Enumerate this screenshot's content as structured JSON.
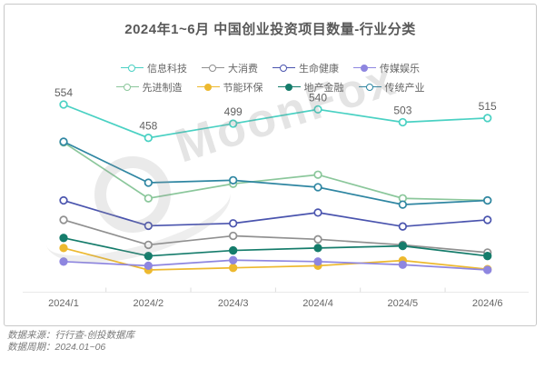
{
  "title": "2024年1~6月 中国创业投资项目数量-行业分类",
  "watermark": "MoonFox",
  "footer": {
    "source": "数据来源：行行查-创投数据库",
    "period": "数据周期：2024.01~06"
  },
  "chart_data": {
    "type": "line",
    "title": "2024年1~6月 中国创业投资项目数量-行业分类",
    "categories": [
      "2024/1",
      "2024/2",
      "2024/3",
      "2024/4",
      "2024/5",
      "2024/6"
    ],
    "series": [
      {
        "name": "信息科技",
        "color": "#4ad1c3",
        "marker": "open",
        "labeled": true,
        "values": [
          554,
          458,
          499,
          540,
          503,
          515
        ]
      },
      {
        "name": "大消费",
        "color": "#909090",
        "marker": "open",
        "labeled": false,
        "values": [
          222,
          150,
          176,
          166,
          150,
          128
        ]
      },
      {
        "name": "生命健康",
        "color": "#4a54ae",
        "marker": "open",
        "labeled": false,
        "values": [
          278,
          205,
          212,
          243,
          203,
          222
        ]
      },
      {
        "name": "传媒娱乐",
        "color": "#8e86e0",
        "marker": "filled",
        "labeled": false,
        "values": [
          102,
          90,
          106,
          102,
          93,
          78
        ]
      },
      {
        "name": "先进制造",
        "color": "#8bc79b",
        "marker": "open",
        "labeled": false,
        "values": [
          445,
          284,
          326,
          352,
          284,
          278
        ]
      },
      {
        "name": "节能环保",
        "color": "#edb92f",
        "marker": "filled",
        "labeled": false,
        "values": [
          141,
          78,
          84,
          90,
          105,
          80
        ]
      },
      {
        "name": "地产金融",
        "color": "#157c6b",
        "marker": "filled",
        "labeled": false,
        "values": [
          170,
          118,
          134,
          141,
          147,
          118
        ]
      },
      {
        "name": "传统产业",
        "color": "#2f86a2",
        "marker": "open",
        "labeled": false,
        "values": [
          447,
          329,
          336,
          316,
          266,
          278
        ]
      }
    ],
    "xlabel": "",
    "ylabel": "",
    "ylim": [
      0,
      600
    ],
    "grid": false,
    "legend_position": "top",
    "legend_rows": [
      [
        0,
        1,
        2,
        3
      ],
      [
        4,
        5,
        6,
        7
      ]
    ],
    "z_order": [
      1,
      5,
      3,
      6,
      2,
      4,
      7,
      0
    ],
    "axis_color": "#e9e9e9",
    "tick_color": "#dddddd",
    "label_color": "#616161"
  }
}
